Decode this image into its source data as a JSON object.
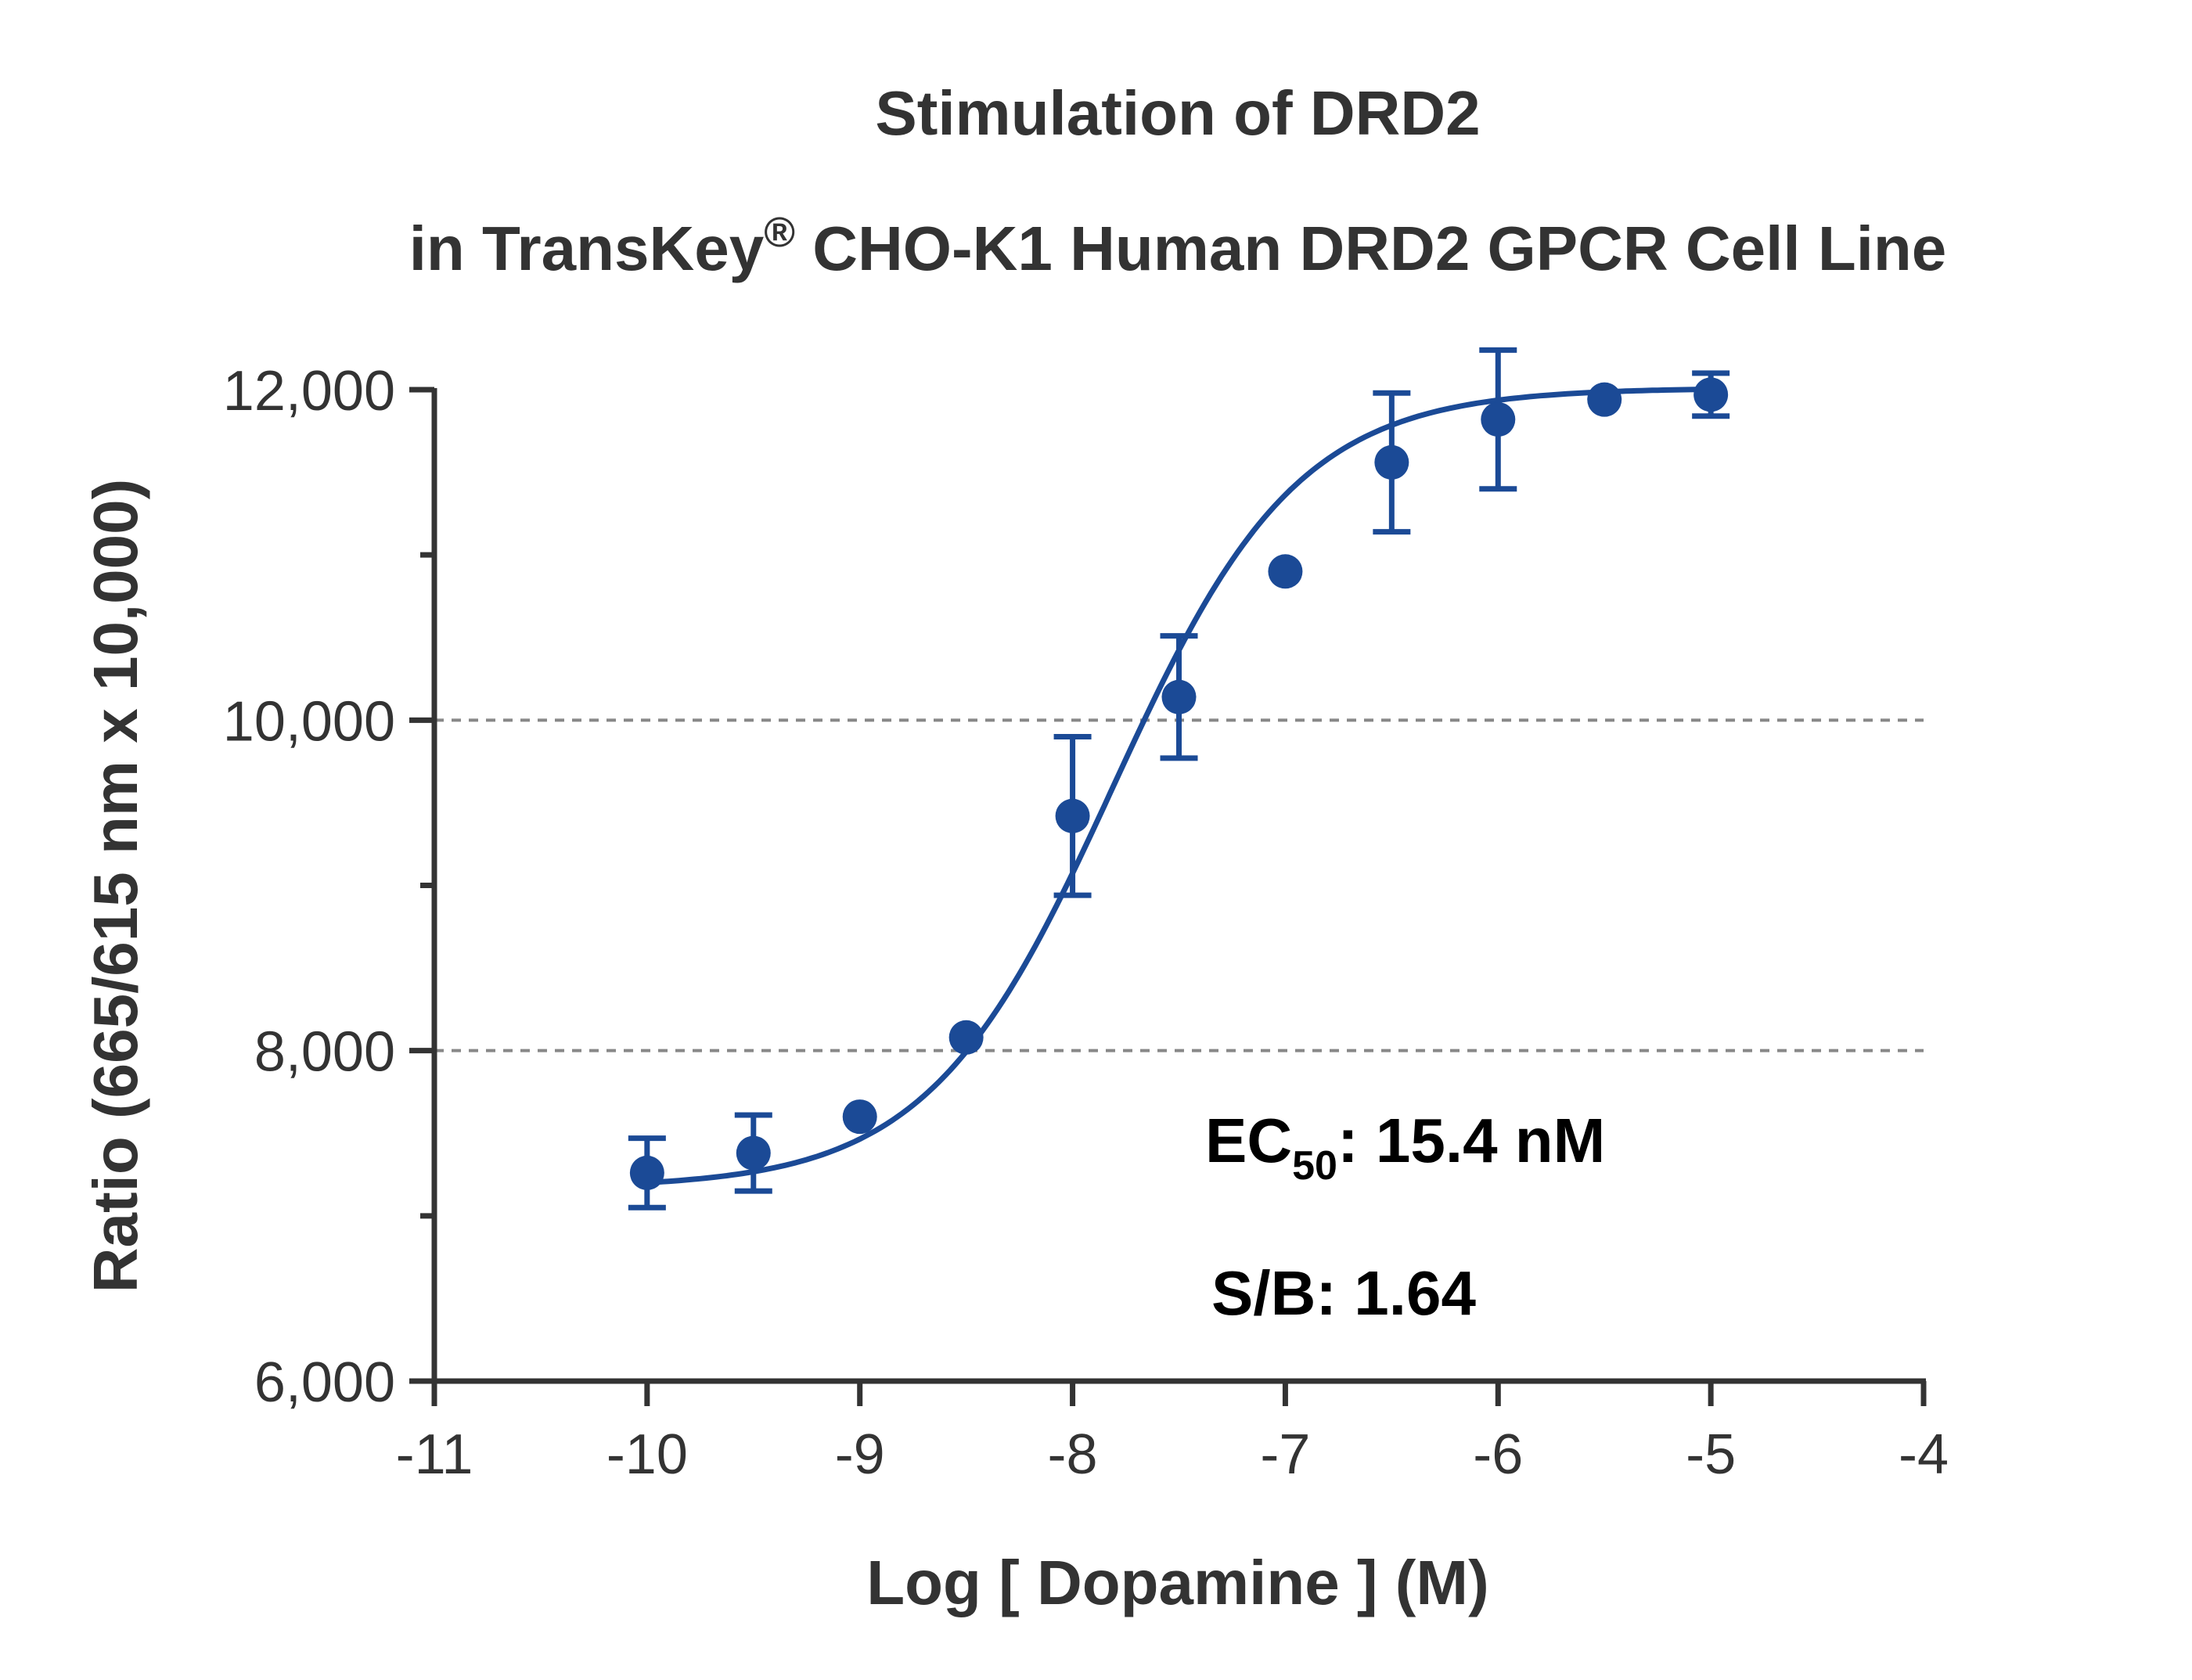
{
  "chart_data": {
    "type": "scatter",
    "title_line1": "Stimulation of  DRD2",
    "title_line2_pre": "in TransKey",
    "title_line2_sup": "®",
    "title_line2_post": " CHO-K1 Human DRD2 GPCR Cell Line",
    "xlabel": "Log [ Dopamine ]  (M)",
    "ylabel": "Ratio (665/615 nm x 10,000)",
    "xlim": [
      -11,
      -4
    ],
    "ylim": [
      6000,
      12000
    ],
    "x_ticks": [
      -11,
      -10,
      -9,
      -8,
      -7,
      -6,
      -5,
      -4
    ],
    "x_tick_labels": [
      "-11",
      "-10",
      "-9",
      "-8",
      "-7",
      "-6",
      "-5",
      "-4"
    ],
    "y_major_ticks": [
      6000,
      8000,
      10000,
      12000
    ],
    "y_tick_labels": [
      "6,000",
      "8,000",
      "10,000",
      "12,000"
    ],
    "y_minor_ticks": [
      7000,
      9000,
      11000
    ],
    "gridlines_y": [
      8000,
      10000
    ],
    "series": [
      {
        "x": [
          -10,
          -9.5,
          -9,
          -8.5,
          -8,
          -7.5,
          -7,
          -6.5,
          -6,
          -5.5,
          -5
        ],
        "y": [
          7260,
          7380,
          7600,
          8080,
          9420,
          10140,
          10900,
          11560,
          11820,
          11940,
          11970
        ],
        "err": [
          210,
          230,
          0,
          0,
          480,
          370,
          0,
          420,
          420,
          0,
          130
        ]
      }
    ],
    "fit": {
      "bottom": 7170,
      "top": 12010,
      "log_ec50": -7.812,
      "hill": 1.0
    },
    "annotations": {
      "ec50_prefix": "EC",
      "ec50_sub": "50",
      "ec50_value": ": 15.4 nM",
      "sb": "S/B: 1.64"
    },
    "colors": {
      "series": "#1b4a96",
      "axis": "#333333",
      "grid": "#888888",
      "text": "#333333"
    }
  }
}
